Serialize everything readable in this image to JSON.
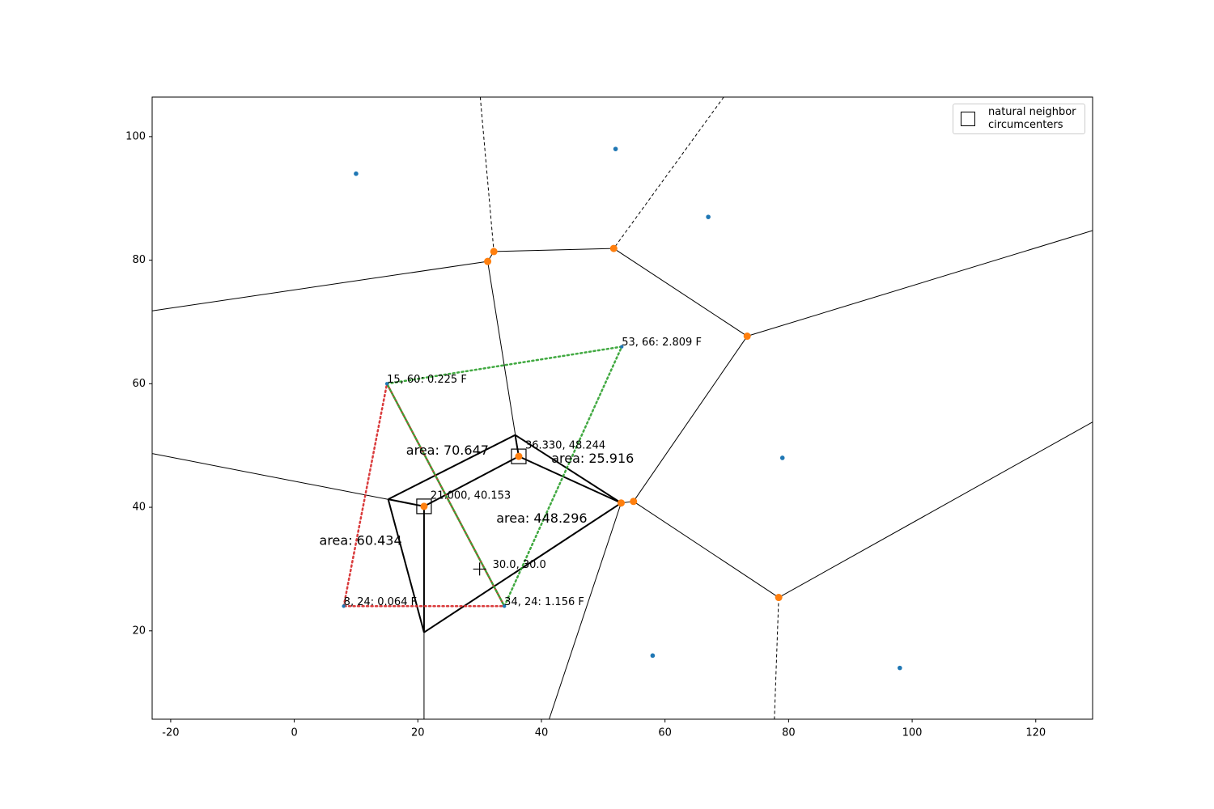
{
  "chart_data": {
    "type": "voronoi",
    "xlim": [
      -23,
      129.2
    ],
    "ylim": [
      5.7,
      106.4
    ],
    "xticks": [
      -20,
      0,
      20,
      40,
      60,
      80,
      100,
      120
    ],
    "yticks": [
      20,
      40,
      60,
      80,
      100
    ],
    "points": {
      "color": "#1f77b4",
      "x": [
        10,
        52,
        67,
        79,
        58,
        98
      ],
      "y": [
        94,
        98,
        87,
        48,
        16,
        14
      ]
    },
    "labeled_points": {
      "color": "#1f77b4",
      "x": [
        15,
        53,
        8,
        34
      ],
      "y": [
        60,
        66,
        24,
        24
      ],
      "labels": [
        "15, 60: 0.225 F",
        "53, 66: 2.809 F",
        "8, 24: 0.064 F",
        "34, 24: 1.156 F"
      ]
    },
    "circumcenters": {
      "color": "#ff7f0e",
      "x": [
        31.3,
        32.3,
        51.7,
        73.3,
        54.9,
        52.9,
        78.4,
        21.0,
        36.33
      ],
      "y": [
        79.8,
        81.4,
        81.9,
        67.7,
        40.95,
        40.7,
        25.4,
        40.153,
        48.244
      ]
    },
    "voronoi_edges": [
      {
        "x": [
          -23,
          31.3
        ],
        "y": [
          71.8,
          79.8
        ]
      },
      {
        "x": [
          31.3,
          32.3
        ],
        "y": [
          79.8,
          81.4
        ]
      },
      {
        "x": [
          32.3,
          51.7
        ],
        "y": [
          81.4,
          81.9
        ]
      },
      {
        "x": [
          51.7,
          73.3
        ],
        "y": [
          81.9,
          67.7
        ]
      },
      {
        "x": [
          73.3,
          129.2
        ],
        "y": [
          67.7,
          84.8
        ]
      },
      {
        "x": [
          73.3,
          54.9
        ],
        "y": [
          67.7,
          40.95
        ]
      },
      {
        "x": [
          54.9,
          52.9
        ],
        "y": [
          40.95,
          40.7
        ]
      },
      {
        "x": [
          54.9,
          78.4
        ],
        "y": [
          40.95,
          25.4
        ]
      },
      {
        "x": [
          78.4,
          129.2
        ],
        "y": [
          25.4,
          53.8
        ]
      },
      {
        "x": [
          31.3,
          36.33
        ],
        "y": [
          79.8,
          48.244
        ]
      },
      {
        "x": [
          -23,
          21.0
        ],
        "y": [
          48.7,
          40.153
        ]
      },
      {
        "x": [
          21.0,
          21.0
        ],
        "y": [
          40.153,
          5.7
        ]
      },
      {
        "x": [
          52.9,
          41.25
        ],
        "y": [
          40.7,
          5.7
        ]
      },
      {
        "x": [
          21.0,
          36.33
        ],
        "y": [
          40.153,
          48.244
        ]
      },
      {
        "x": [
          36.33,
          52.9
        ],
        "y": [
          48.244,
          40.7
        ]
      }
    ],
    "dashed_edges": [
      {
        "x": [
          30.1,
          32.3
        ],
        "y": [
          106.4,
          81.4
        ]
      },
      {
        "x": [
          69.5,
          51.7
        ],
        "y": [
          106.4,
          81.9
        ]
      },
      {
        "x": [
          78.4,
          77.7
        ],
        "y": [
          25.4,
          5.7
        ]
      }
    ],
    "triangles": [
      {
        "color": "#d62728",
        "x": [
          8,
          15,
          34
        ],
        "y": [
          24,
          60,
          24
        ]
      },
      {
        "color": "#2ca02c",
        "x": [
          15,
          53,
          34
        ],
        "y": [
          60,
          66,
          24
        ]
      }
    ],
    "area_edges": [
      {
        "x": [
          15.2,
          35.75
        ],
        "y": [
          41.3,
          51.7
        ]
      },
      {
        "x": [
          35.75,
          52.9
        ],
        "y": [
          51.7,
          40.7
        ]
      },
      {
        "x": [
          52.9,
          21.0
        ],
        "y": [
          40.7,
          19.75
        ]
      },
      {
        "x": [
          21.0,
          15.2
        ],
        "y": [
          19.75,
          41.3
        ]
      },
      {
        "x": [
          15.2,
          21.0
        ],
        "y": [
          41.3,
          40.153
        ]
      },
      {
        "x": [
          21.0,
          21.0
        ],
        "y": [
          40.153,
          19.75
        ]
      },
      {
        "x": [
          21.0,
          36.33
        ],
        "y": [
          40.153,
          48.244
        ]
      },
      {
        "x": [
          36.33,
          52.9
        ],
        "y": [
          48.244,
          40.7
        ]
      },
      {
        "x": [
          35.75,
          36.33
        ],
        "y": [
          51.7,
          48.244
        ]
      }
    ],
    "natural_neighbor_circumcenters": {
      "name": "natural neighbor\ncircumcenters",
      "x": [
        21.0,
        36.33
      ],
      "y": [
        40.153,
        48.244
      ],
      "labels": [
        "21.000, 40.153",
        "36.330, 48.244"
      ]
    },
    "interpolation_point": {
      "x": 30.0,
      "y": 30.0,
      "label": "30.0, 30.0"
    },
    "area_labels": [
      {
        "text": "area: 70.647",
        "x": 18.1,
        "y": 49.1
      },
      {
        "text": "area: 25.916",
        "x": 41.6,
        "y": 47.8
      },
      {
        "text": "area: 448.296",
        "x": 32.7,
        "y": 38.1
      },
      {
        "text": "area: 60.434",
        "x": 4.05,
        "y": 34.5
      }
    ]
  }
}
